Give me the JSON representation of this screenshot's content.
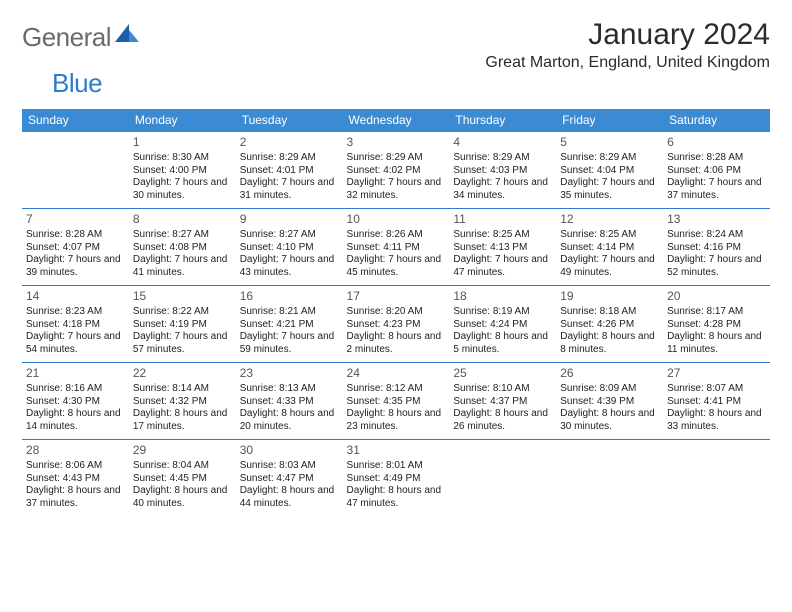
{
  "logo": {
    "general": "General",
    "blue": "Blue"
  },
  "month_title": "January 2024",
  "location": "Great Marton, England, United Kingdom",
  "colors": {
    "header_bg": "#3b8bd4",
    "header_bg_alt": "#2e7cd1",
    "sep": "#2e7cd1"
  },
  "daynames": [
    "Sunday",
    "Monday",
    "Tuesday",
    "Wednesday",
    "Thursday",
    "Friday",
    "Saturday"
  ],
  "weeks": [
    [
      null,
      {
        "n": "1",
        "sr": "8:30 AM",
        "ss": "4:00 PM",
        "dl": "7 hours and 30 minutes."
      },
      {
        "n": "2",
        "sr": "8:29 AM",
        "ss": "4:01 PM",
        "dl": "7 hours and 31 minutes."
      },
      {
        "n": "3",
        "sr": "8:29 AM",
        "ss": "4:02 PM",
        "dl": "7 hours and 32 minutes."
      },
      {
        "n": "4",
        "sr": "8:29 AM",
        "ss": "4:03 PM",
        "dl": "7 hours and 34 minutes."
      },
      {
        "n": "5",
        "sr": "8:29 AM",
        "ss": "4:04 PM",
        "dl": "7 hours and 35 minutes."
      },
      {
        "n": "6",
        "sr": "8:28 AM",
        "ss": "4:06 PM",
        "dl": "7 hours and 37 minutes."
      }
    ],
    [
      {
        "n": "7",
        "sr": "8:28 AM",
        "ss": "4:07 PM",
        "dl": "7 hours and 39 minutes."
      },
      {
        "n": "8",
        "sr": "8:27 AM",
        "ss": "4:08 PM",
        "dl": "7 hours and 41 minutes."
      },
      {
        "n": "9",
        "sr": "8:27 AM",
        "ss": "4:10 PM",
        "dl": "7 hours and 43 minutes."
      },
      {
        "n": "10",
        "sr": "8:26 AM",
        "ss": "4:11 PM",
        "dl": "7 hours and 45 minutes."
      },
      {
        "n": "11",
        "sr": "8:25 AM",
        "ss": "4:13 PM",
        "dl": "7 hours and 47 minutes."
      },
      {
        "n": "12",
        "sr": "8:25 AM",
        "ss": "4:14 PM",
        "dl": "7 hours and 49 minutes."
      },
      {
        "n": "13",
        "sr": "8:24 AM",
        "ss": "4:16 PM",
        "dl": "7 hours and 52 minutes."
      }
    ],
    [
      {
        "n": "14",
        "sr": "8:23 AM",
        "ss": "4:18 PM",
        "dl": "7 hours and 54 minutes."
      },
      {
        "n": "15",
        "sr": "8:22 AM",
        "ss": "4:19 PM",
        "dl": "7 hours and 57 minutes."
      },
      {
        "n": "16",
        "sr": "8:21 AM",
        "ss": "4:21 PM",
        "dl": "7 hours and 59 minutes."
      },
      {
        "n": "17",
        "sr": "8:20 AM",
        "ss": "4:23 PM",
        "dl": "8 hours and 2 minutes."
      },
      {
        "n": "18",
        "sr": "8:19 AM",
        "ss": "4:24 PM",
        "dl": "8 hours and 5 minutes."
      },
      {
        "n": "19",
        "sr": "8:18 AM",
        "ss": "4:26 PM",
        "dl": "8 hours and 8 minutes."
      },
      {
        "n": "20",
        "sr": "8:17 AM",
        "ss": "4:28 PM",
        "dl": "8 hours and 11 minutes."
      }
    ],
    [
      {
        "n": "21",
        "sr": "8:16 AM",
        "ss": "4:30 PM",
        "dl": "8 hours and 14 minutes."
      },
      {
        "n": "22",
        "sr": "8:14 AM",
        "ss": "4:32 PM",
        "dl": "8 hours and 17 minutes."
      },
      {
        "n": "23",
        "sr": "8:13 AM",
        "ss": "4:33 PM",
        "dl": "8 hours and 20 minutes."
      },
      {
        "n": "24",
        "sr": "8:12 AM",
        "ss": "4:35 PM",
        "dl": "8 hours and 23 minutes."
      },
      {
        "n": "25",
        "sr": "8:10 AM",
        "ss": "4:37 PM",
        "dl": "8 hours and 26 minutes."
      },
      {
        "n": "26",
        "sr": "8:09 AM",
        "ss": "4:39 PM",
        "dl": "8 hours and 30 minutes."
      },
      {
        "n": "27",
        "sr": "8:07 AM",
        "ss": "4:41 PM",
        "dl": "8 hours and 33 minutes."
      }
    ],
    [
      {
        "n": "28",
        "sr": "8:06 AM",
        "ss": "4:43 PM",
        "dl": "8 hours and 37 minutes."
      },
      {
        "n": "29",
        "sr": "8:04 AM",
        "ss": "4:45 PM",
        "dl": "8 hours and 40 minutes."
      },
      {
        "n": "30",
        "sr": "8:03 AM",
        "ss": "4:47 PM",
        "dl": "8 hours and 44 minutes."
      },
      {
        "n": "31",
        "sr": "8:01 AM",
        "ss": "4:49 PM",
        "dl": "8 hours and 47 minutes."
      },
      null,
      null,
      null
    ]
  ],
  "labels": {
    "sunrise": "Sunrise: ",
    "sunset": "Sunset: ",
    "daylight": "Daylight: "
  }
}
